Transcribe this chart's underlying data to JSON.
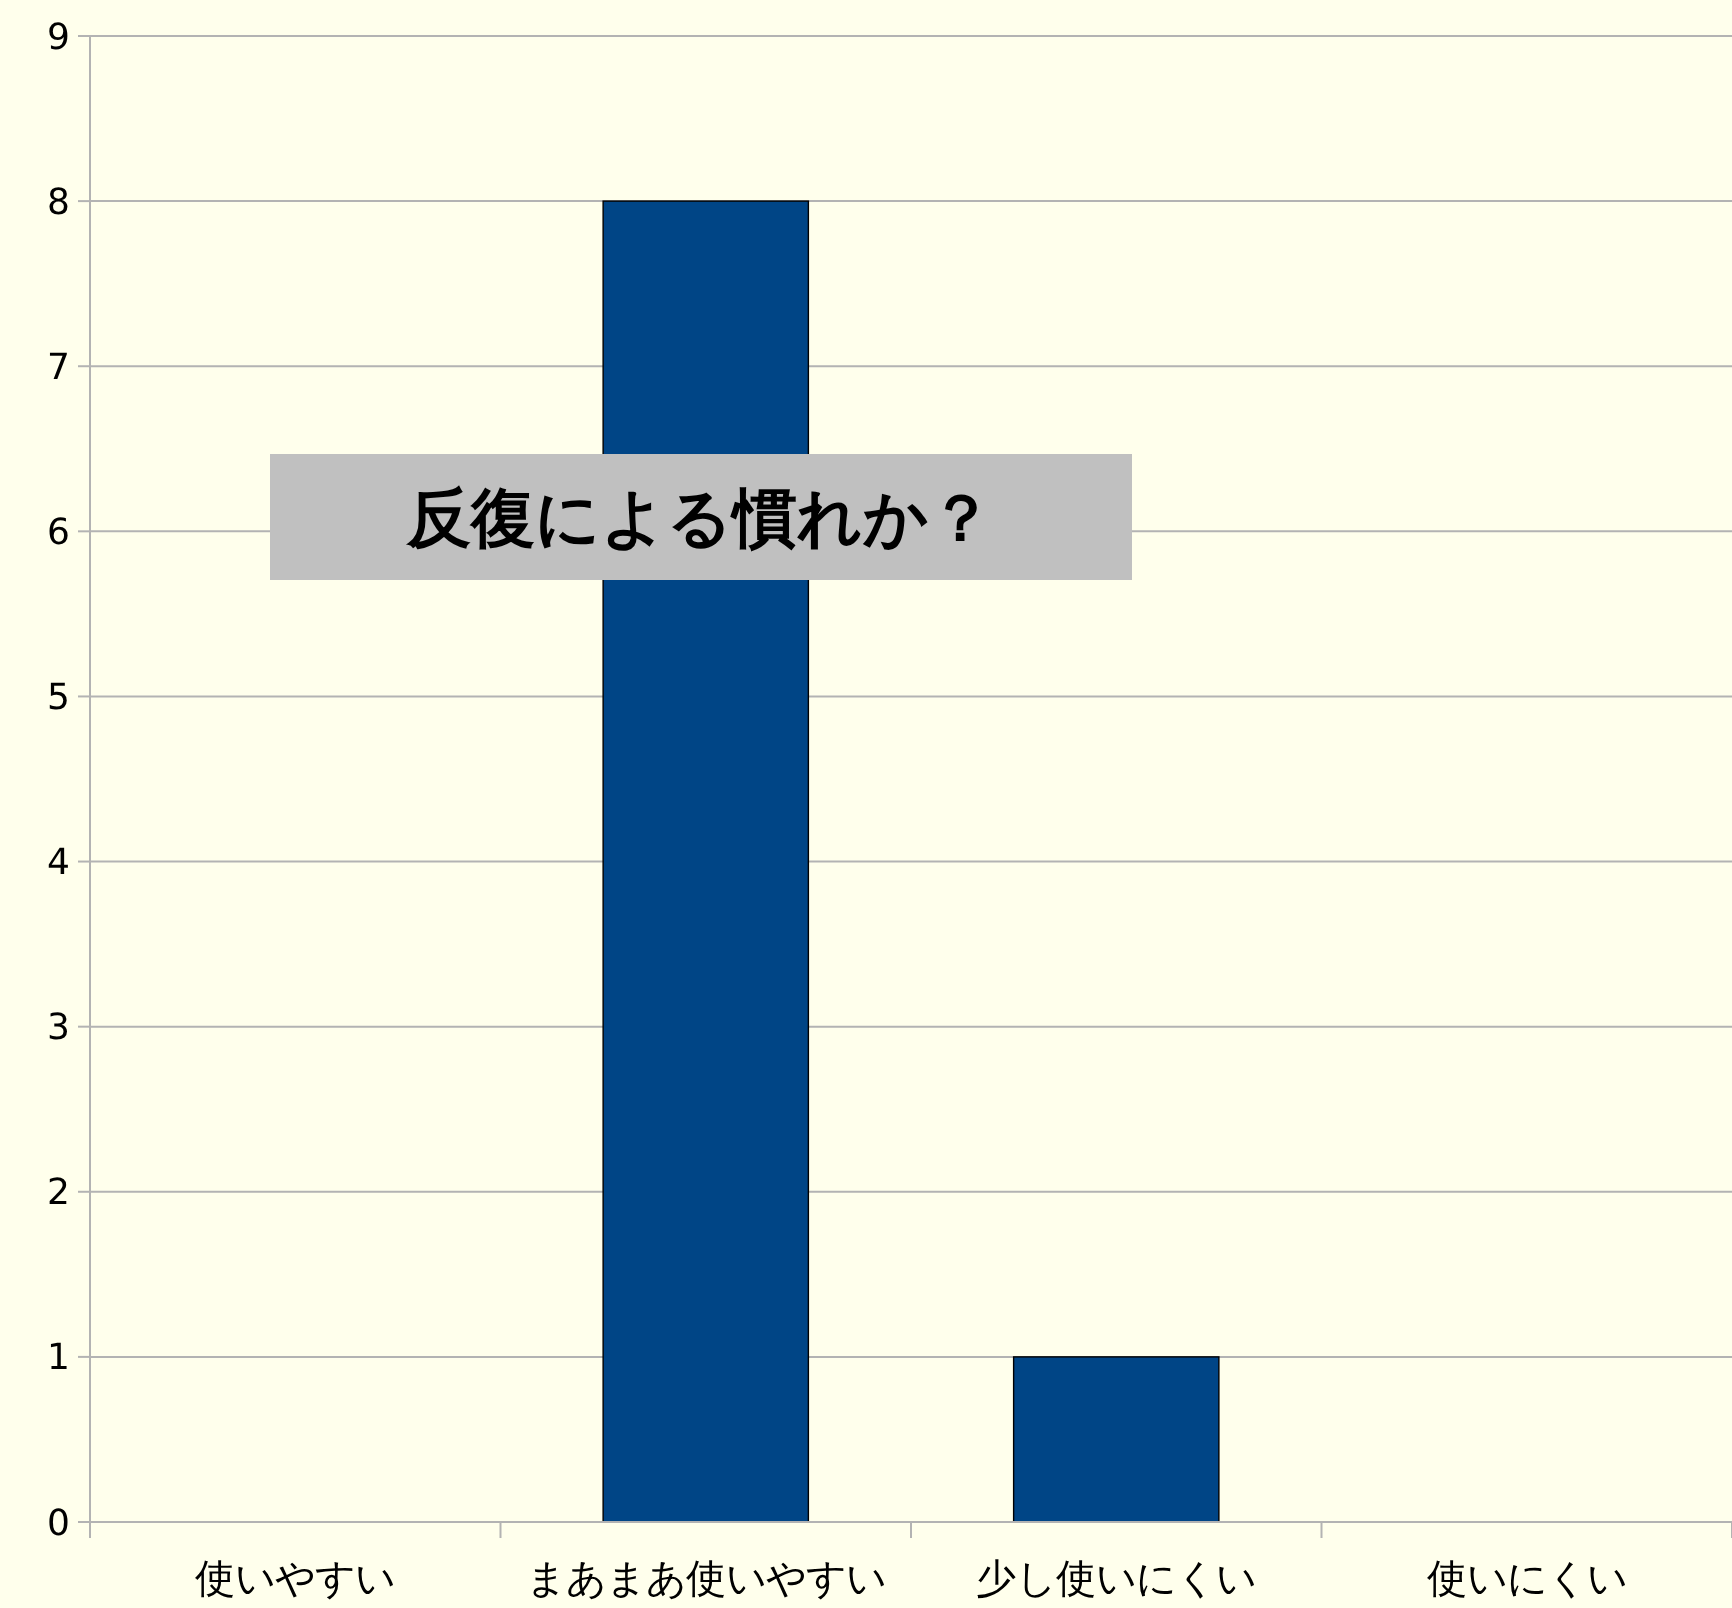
{
  "chart_data": {
    "type": "bar",
    "categories": [
      "使いやすい",
      "まあまあ使いやすい",
      "少し使いにくい",
      "使いにくい"
    ],
    "values": [
      0,
      8,
      1,
      0
    ],
    "color": "#004586",
    "ylim": [
      0,
      9
    ],
    "yticks": [
      0,
      1,
      2,
      3,
      4,
      5,
      6,
      7,
      8,
      9
    ],
    "grid": "y",
    "annotations": [
      "反復による慣れか？"
    ]
  }
}
